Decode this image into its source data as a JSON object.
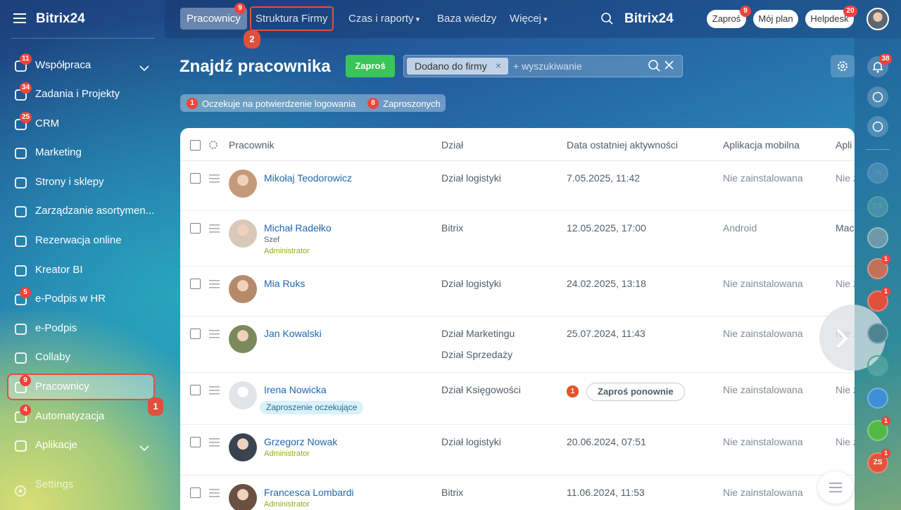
{
  "sidebar": {
    "logo": "Bitrix24",
    "items": [
      {
        "label": "Współpraca",
        "badge": 11,
        "chevron": true
      },
      {
        "label": "Zadania i Projekty",
        "badge": 34
      },
      {
        "label": "CRM",
        "badge": 25
      },
      {
        "label": "Marketing"
      },
      {
        "label": "Strony i sklepy"
      },
      {
        "label": "Zarządzanie asortymen..."
      },
      {
        "label": "Rezerwacja online"
      },
      {
        "label": "Kreator BI"
      },
      {
        "label": "e-Podpis w HR",
        "badge": 5
      },
      {
        "label": "e-Podpis"
      },
      {
        "label": "Collaby"
      },
      {
        "label": "Pracownicy",
        "badge": 9,
        "active": true
      },
      {
        "label": "Automatyzacja",
        "badge": 4
      },
      {
        "label": "Aplikacje",
        "chevron": true
      }
    ],
    "settings": "Settings"
  },
  "topnav": {
    "tabs": [
      {
        "label": "Pracownicy",
        "badge": 9,
        "active": true
      },
      {
        "label": "Struktura Firmy"
      },
      {
        "label": "Czas i raporty",
        "dropdown": true
      },
      {
        "label": "Baza wiedzy"
      },
      {
        "label": "Więcej",
        "dropdown": true
      }
    ],
    "logo": "Bitrix24",
    "invite": {
      "label": "Zaproś",
      "badge": 9
    },
    "plan": "Mój plan",
    "helpdesk": {
      "label": "Helpdesk",
      "badge": 20
    }
  },
  "annotations": [
    "1",
    "2"
  ],
  "header": {
    "title": "Znajdź pracownika",
    "invite_button": "Zaproś",
    "filter_chip": "Dodano do firmy",
    "search_placeholder": "+ wyszukiwanie"
  },
  "status_chips": [
    {
      "count": 1,
      "label": "Oczekuje na potwierdzenie logowania"
    },
    {
      "count": 8,
      "label": "Zaproszonych"
    }
  ],
  "table": {
    "columns": [
      "Pracownik",
      "Dział",
      "Data ostatniej aktywności",
      "Aplikacja mobilna",
      "Apli"
    ],
    "rows": [
      {
        "name": "Mikołaj Teodorowicz",
        "departments": [
          "Dział logistyki"
        ],
        "activity": "7.05.2025, 11:42",
        "mobile": "Nie zainstalowana",
        "last": "Nie z"
      },
      {
        "name": "Michał Radełko",
        "position": "Szef",
        "role": "Administrator",
        "departments": [
          "Bitrix"
        ],
        "activity": "12.05.2025, 17:00",
        "mobile": "Android",
        "last": "Mac"
      },
      {
        "name": "Mia Ruks",
        "departments": [
          "Dział logistyki"
        ],
        "activity": "24.02.2025, 13:18",
        "mobile": "Nie zainstalowana",
        "last": "Nie z"
      },
      {
        "name": "Jan Kowalski",
        "departments": [
          "Dział Marketingu",
          "Dział Sprzedaży"
        ],
        "activity": "25.07.2024, 11:43",
        "mobile": "Nie zainstalowana",
        "last": "Nie z"
      },
      {
        "name": "Irena Nowicka",
        "tag": "Zaproszenie oczekujące",
        "departments": [
          "Dział Księgowości"
        ],
        "activity_badge": 1,
        "activity_button": "Zaproś ponownie",
        "mobile": "Nie zainstalowana",
        "last": "Nie z"
      },
      {
        "name": "Grzegorz Nowak",
        "role": "Administrator",
        "departments": [
          "Dział logistyki"
        ],
        "activity": "20.06.2024, 07:51",
        "mobile": "Nie zainstalowana",
        "last": "Nie z"
      },
      {
        "name": "Francesca Lombardi",
        "role": "Administrator",
        "departments": [
          "Bitrix"
        ],
        "activity": "11.06.2024, 11:53",
        "mobile": "Nie zainstalowana"
      }
    ]
  },
  "rightbar": {
    "notifications_badge": 38,
    "items": [
      {
        "initials": "IA",
        "color": "#5b8fc9"
      },
      {
        "initials": "CS",
        "color": "#4aa89a"
      },
      {
        "color": "#6a9aa6"
      },
      {
        "color": "#c2705a",
        "badge": 1
      },
      {
        "color": "#e0503c",
        "badge": 1
      },
      {
        "color": "#4e8394"
      },
      {
        "initials": "ZS",
        "color": "#3fae8c"
      },
      {
        "color": "#3f8fd8"
      },
      {
        "color": "#54b847",
        "badge": 1
      },
      {
        "initials": "ZS",
        "color": "#e0553a",
        "badge": 1
      }
    ]
  }
}
